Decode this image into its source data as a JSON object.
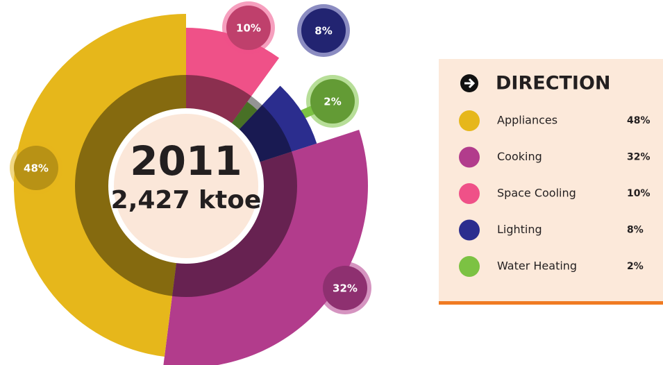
{
  "chart_data": {
    "type": "pie",
    "title": "2011",
    "subtitle": "2,427 ktoe",
    "legend_title": "DIRECTION",
    "categories": [
      "Appliances",
      "Cooking",
      "Space Cooling",
      "Lighting",
      "Water Heating"
    ],
    "values": [
      48,
      32,
      10,
      8,
      2
    ],
    "value_labels": [
      "48%",
      "32%",
      "10%",
      "8%",
      "2%"
    ],
    "colors": [
      "#e6b71b",
      "#b23c8c",
      "#ef5188",
      "#2b2d8e",
      "#7cc243"
    ]
  }
}
